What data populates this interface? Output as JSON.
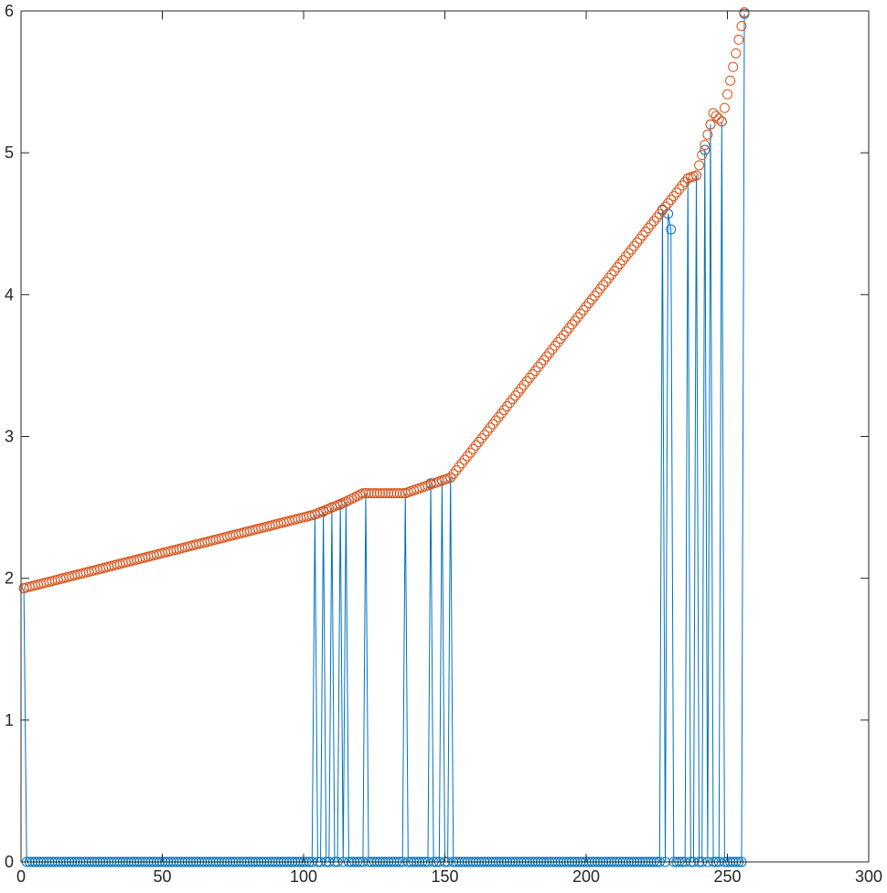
{
  "chart_data": {
    "type": "line",
    "title": "",
    "xlabel": "",
    "ylabel": "",
    "xlim": [
      0,
      300
    ],
    "ylim": [
      0,
      6
    ],
    "xticks": [
      0,
      50,
      100,
      150,
      200,
      250,
      300
    ],
    "yticks": [
      0,
      1,
      2,
      3,
      4,
      5,
      6
    ],
    "xtick_labels": [
      "0",
      "50",
      "100",
      "150",
      "200",
      "250",
      "300"
    ],
    "ytick_labels": [
      "0",
      "1",
      "2",
      "3",
      "4",
      "5",
      "6"
    ],
    "grid": false,
    "box": true,
    "series": [
      {
        "color": "#0072BD",
        "marker": "circle",
        "linestyle": "solid",
        "num_points": 256,
        "nonzero_points": [
          [
            1,
            1.93
          ],
          [
            104,
            2.45
          ],
          [
            107,
            2.47
          ],
          [
            110,
            2.5
          ],
          [
            113,
            2.52
          ],
          [
            115,
            2.54
          ],
          [
            122,
            2.6
          ],
          [
            136,
            2.6
          ],
          [
            145,
            2.67
          ],
          [
            149,
            2.69
          ],
          [
            152,
            2.71
          ],
          [
            227,
            4.6
          ],
          [
            229,
            4.57
          ],
          [
            230,
            4.46
          ],
          [
            236,
            4.82
          ],
          [
            239,
            4.84
          ],
          [
            242,
            5.02
          ],
          [
            244,
            5.2
          ],
          [
            248,
            5.22
          ],
          [
            256,
            5.98
          ]
        ]
      },
      {
        "color": "#D95319",
        "marker": "circle",
        "linestyle": "none",
        "num_points": 256,
        "breakpoints": [
          [
            1,
            1.93
          ],
          [
            104,
            2.45
          ],
          [
            115,
            2.54
          ],
          [
            121,
            2.6
          ],
          [
            136,
            2.6
          ],
          [
            152,
            2.71
          ],
          [
            236,
            4.82
          ],
          [
            239,
            4.84
          ],
          [
            244,
            5.2
          ],
          [
            245,
            5.28
          ],
          [
            248,
            5.22
          ],
          [
            256,
            5.99
          ]
        ]
      }
    ]
  }
}
